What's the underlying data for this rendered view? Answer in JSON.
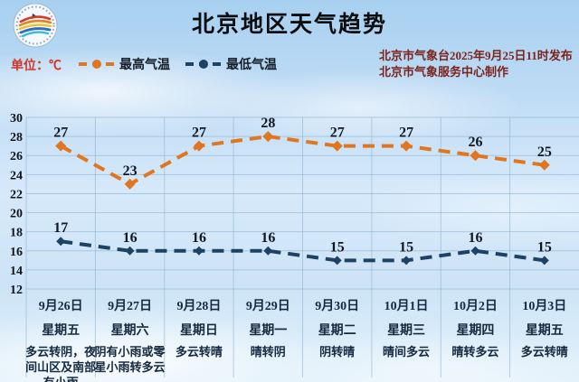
{
  "header": {
    "title": "北京地区天气趋势",
    "unit_label": "单位：℃",
    "issue_line1": "北京市气象台2025年9月25日11时发布",
    "issue_line2": "北京市气象服务中心制作"
  },
  "legend": {
    "high_label": "最高气温",
    "low_label": "最低气温"
  },
  "colors": {
    "high_line": "#e0761f",
    "low_line": "#1d4263",
    "grid": "#8fb3d0",
    "unit_text": "#d2342a",
    "issue_text": "#7c231c",
    "value_label_text": "#101722",
    "date_text": "#15293f"
  },
  "chart_data": {
    "type": "line",
    "title": "北京地区天气趋势",
    "categories": [
      "9月26日",
      "9月27日",
      "9月28日",
      "9月29日",
      "9月30日",
      "10月1日",
      "10月2日",
      "10月3日"
    ],
    "weekdays": [
      "星期五",
      "星期六",
      "星期日",
      "星期一",
      "星期二",
      "星期三",
      "星期四",
      "星期五"
    ],
    "weather": [
      "多云转阴，夜间山区及南部有小雨",
      "阴有小雨或零星小雨转多云",
      "多云转晴",
      "晴转阴",
      "阴转晴",
      "晴间多云",
      "晴转多云",
      "多云转晴"
    ],
    "series": [
      {
        "name": "最高气温",
        "color": "#e0761f",
        "values": [
          27,
          23,
          27,
          28,
          27,
          27,
          26,
          25
        ]
      },
      {
        "name": "最低气温",
        "color": "#1d4263",
        "values": [
          17,
          16,
          16,
          16,
          15,
          15,
          16,
          15
        ]
      }
    ],
    "xlabel": "",
    "ylabel": "℃",
    "ylim": [
      12,
      30
    ],
    "yticks": [
      12,
      14,
      16,
      18,
      20,
      22,
      24,
      26,
      28,
      30
    ],
    "grid": true,
    "legend_position": "top"
  }
}
